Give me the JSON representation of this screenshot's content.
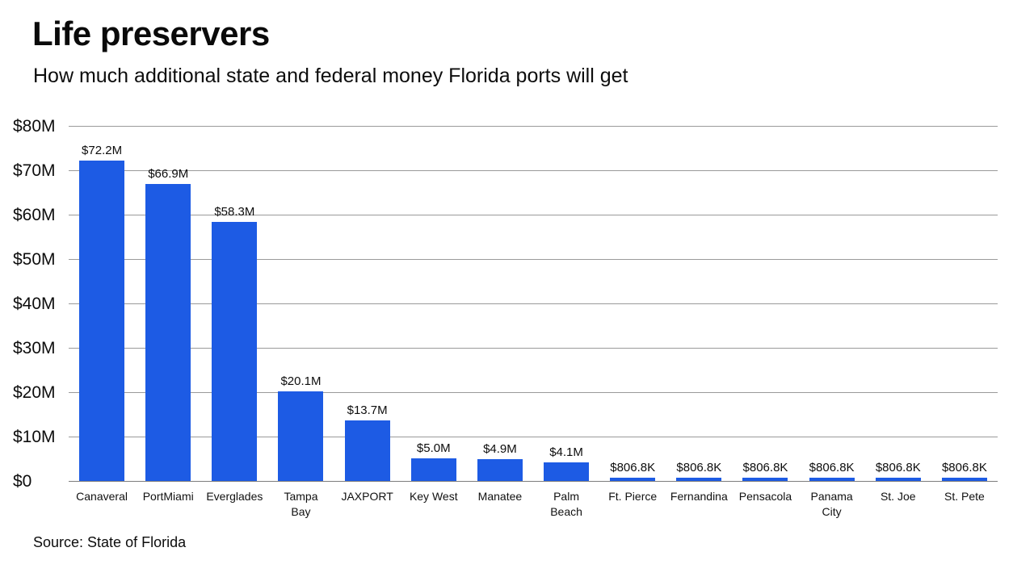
{
  "header": {
    "title": "Life preservers",
    "subtitle": "How much additional state and federal money Florida ports will get"
  },
  "source_note": "Source: State of Florida",
  "colors": {
    "bar": "#1d5be4",
    "gridline": "#9a9a9a",
    "text": "#0d0d0d"
  },
  "chart_data": {
    "type": "bar",
    "title": "Life preservers",
    "subtitle": "How much additional state and federal money Florida ports will get",
    "unit": "USD",
    "categories": [
      "Canaveral",
      "PortMiami",
      "Everglades",
      "Tampa\nBay",
      "JAXPORT",
      "Key West",
      "Manatee",
      "Palm\nBeach",
      "Ft. Pierce",
      "Fernandina",
      "Pensacola",
      "Panama\nCity",
      "St. Joe",
      "St. Pete"
    ],
    "values_millions": [
      72.2,
      66.9,
      58.3,
      20.1,
      13.7,
      5.0,
      4.9,
      4.1,
      0.8068,
      0.8068,
      0.8068,
      0.8068,
      0.8068,
      0.8068
    ],
    "value_labels": [
      "$72.2M",
      "$66.9M",
      "$58.3M",
      "$20.1M",
      "$13.7M",
      "$5.0M",
      "$4.9M",
      "$4.1M",
      "$806.8K",
      "$806.8K",
      "$806.8K",
      "$806.8K",
      "$806.8K",
      "$806.8K"
    ],
    "ylim": [
      0,
      80
    ],
    "yticks": [
      80,
      70,
      60,
      50,
      40,
      30,
      20,
      10,
      0
    ],
    "ytick_labels": [
      "$80M",
      "$70M",
      "$60M",
      "$50M",
      "$40M",
      "$30M",
      "$20M",
      "$10M",
      "$0"
    ],
    "xlabel": "",
    "ylabel": "",
    "grid": true,
    "legend": "none"
  }
}
